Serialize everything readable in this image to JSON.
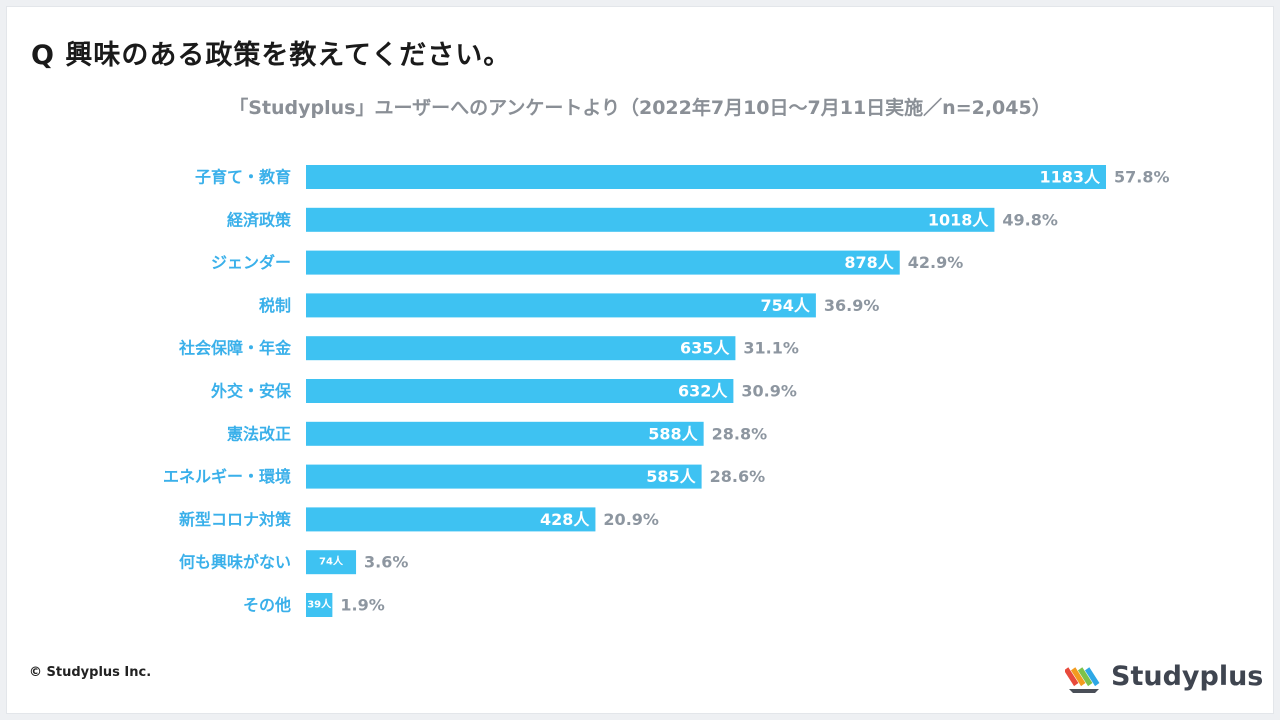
{
  "header": {
    "title": "Q 興味のある政策を教えてください。",
    "subtitle": "「Studyplus」ユーザーへのアンケートより（2022年7月10日〜7月11日実施／n=2,045）"
  },
  "colors": {
    "bar": "#3ec2f2",
    "category_label": "#3ab0ea",
    "percent_label": "#8d96a0",
    "count_label": "#ffffff"
  },
  "chart_data": {
    "type": "bar",
    "orientation": "horizontal",
    "title": "Q 興味のある政策を教えてください。",
    "subtitle": "「Studyplus」ユーザーへのアンケートより（2022年7月10日〜7月11日実施／n=2,045）",
    "categories": [
      "子育て・教育",
      "経済政策",
      "ジェンダー",
      "税制",
      "社会保障・年金",
      "外交・安保",
      "憲法改正",
      "エネルギー・環境",
      "新型コロナ対策",
      "何も興味がない",
      "その他"
    ],
    "values": [
      1183,
      1018,
      878,
      754,
      635,
      632,
      588,
      585,
      428,
      74,
      39
    ],
    "count_labels": [
      "1183人",
      "1018人",
      "878人",
      "754人",
      "635人",
      "632人",
      "588人",
      "585人",
      "428人",
      "74人",
      "39人"
    ],
    "percent_labels": [
      "57.8%",
      "49.8%",
      "42.9%",
      "36.9%",
      "31.1%",
      "30.9%",
      "28.8%",
      "28.6%",
      "20.9%",
      "3.6%",
      "1.9%"
    ],
    "xlim": [
      0,
      1183
    ],
    "grid": false,
    "legend": "none"
  },
  "footer": {
    "copyright": "© Studyplus Inc.",
    "logo_text": "Studyplus"
  }
}
